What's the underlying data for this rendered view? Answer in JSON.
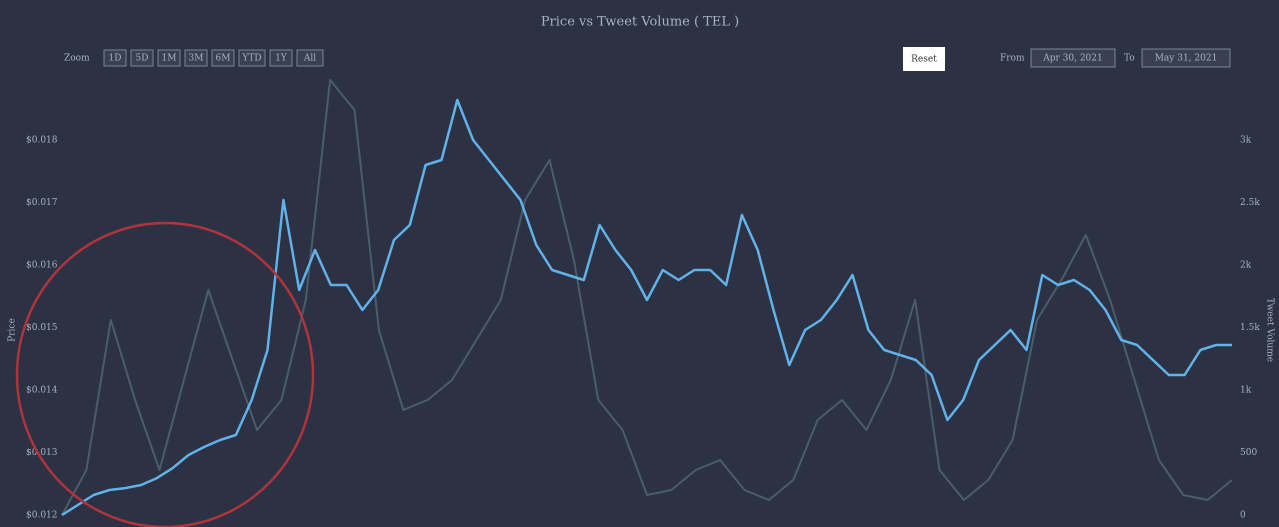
{
  "toolbar": {
    "zoom_label": "Zoom",
    "zoom_buttons": [
      "1D",
      "5D",
      "1M",
      "3M",
      "6M",
      "YTD",
      "1Y",
      "All"
    ],
    "reset_button": "Reset",
    "from_label": "From",
    "from_date": "Apr 30, 2021",
    "to_label": "To",
    "to_date": "May 31, 2021"
  },
  "chart_data": {
    "type": "line",
    "title": "Price vs Tweet Volume ( TEL )",
    "y_label": "Price",
    "y2_label": "Tweet Volume",
    "ylim": [
      0.012,
      0.019
    ],
    "yticks": [
      {
        "value": 0.012,
        "label": "$0.012"
      },
      {
        "value": 0.013,
        "label": "$0.013"
      },
      {
        "value": 0.014,
        "label": "$0.014"
      },
      {
        "value": 0.015,
        "label": "$0.015"
      },
      {
        "value": 0.016,
        "label": "$0.016"
      },
      {
        "value": 0.017,
        "label": "$0.017"
      },
      {
        "value": 0.018,
        "label": "$0.018"
      }
    ],
    "y2lim": [
      0,
      3500
    ],
    "y2ticks": [
      0,
      500,
      {
        "value": 1000,
        "label": "1k"
      },
      {
        "value": 1500,
        "label": "1.5k"
      },
      {
        "value": 2000,
        "label": "2k"
      },
      {
        "value": 2500,
        "label": "2.5k"
      },
      {
        "value": 3000,
        "label": "3k"
      }
    ],
    "series": [
      {
        "color": "#4a5d6b",
        "axis": "y2",
        "values": [
          0,
          360,
          1560,
          920,
          360,
          1080,
          1800,
          1240,
          680,
          920,
          1720,
          3480,
          3240,
          1480,
          840,
          920,
          1080,
          1400,
          1720,
          2520,
          2840,
          2040,
          920,
          680,
          160,
          200,
          360,
          440,
          200,
          120,
          280,
          760,
          920,
          680,
          1080,
          1720,
          360,
          120,
          280,
          600,
          1560,
          1880,
          2240,
          1720,
          1080,
          440,
          160,
          120,
          280
        ]
      },
      {
        "color": "#62b2ea",
        "values": [
          0.012,
          0.01216,
          0.01232,
          0.0124,
          0.01243,
          0.01248,
          0.01259,
          0.01275,
          0.01296,
          0.01309,
          0.0132,
          0.01328,
          0.01384,
          0.01464,
          0.01704,
          0.0156,
          0.01624,
          0.01568,
          0.01568,
          0.01528,
          0.0156,
          0.0164,
          0.01664,
          0.0176,
          0.01768,
          0.01864,
          0.018,
          0.01768,
          0.01736,
          0.01704,
          0.01632,
          0.01592,
          0.01584,
          0.01576,
          0.01664,
          0.01624,
          0.01592,
          0.01544,
          0.01592,
          0.01576,
          0.01592,
          0.01592,
          0.01568,
          0.0168,
          0.01624,
          0.01528,
          0.0144,
          0.01496,
          0.01512,
          0.01544,
          0.01584,
          0.01496,
          0.01464,
          0.01456,
          0.01448,
          0.01424,
          0.01352,
          0.01384,
          0.01448,
          0.01472,
          0.01496,
          0.01464,
          0.01584,
          0.01568,
          0.01576,
          0.0156,
          0.01528,
          0.0148,
          0.01472,
          0.01448,
          0.01424,
          0.01424,
          0.01464,
          0.01472,
          0.01472
        ]
      }
    ]
  }
}
